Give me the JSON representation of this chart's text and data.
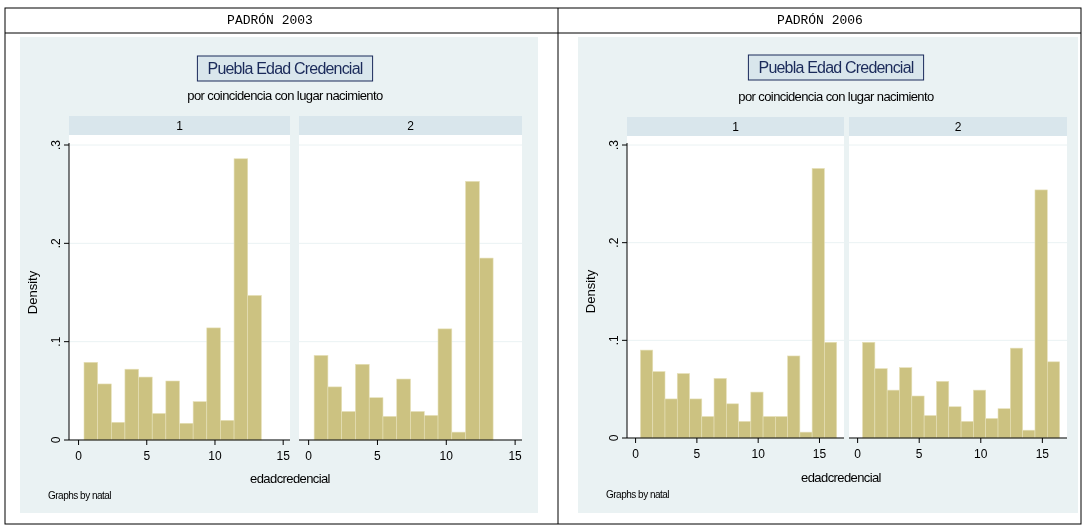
{
  "chart_data": [
    {
      "type": "histogram",
      "title": "Puebla Edad Credencial",
      "subtitle": "por coincidencia con lugar nacimiento",
      "xlabel": "edadcredencial",
      "ylabel": "Density",
      "annotations": [
        "PADRÓN 2003",
        "1",
        "Graphs by natal"
      ],
      "bins": [
        0.4,
        1.4,
        2.4,
        3.4,
        4.4,
        5.4,
        6.4,
        7.4,
        8.4,
        9.4,
        10.4,
        11.4,
        12.4,
        13.4
      ],
      "values": [
        0.079,
        0.057,
        0.018,
        0.072,
        0.064,
        0.027,
        0.06,
        0.017,
        0.039,
        0.114,
        0.02,
        0.286,
        0.147
      ],
      "color": "#ccc281",
      "xlim": [
        -0.7,
        15.5
      ],
      "xticks": [
        0,
        5,
        10,
        15
      ],
      "ylim": [
        0,
        0.3
      ],
      "yticks": [
        0,
        {
          "value": 0.1,
          "label": ".1"
        },
        {
          "value": 0.2,
          "label": ".2"
        },
        {
          "value": 0.3,
          "label": ".3"
        }
      ],
      "grid": "y"
    },
    {
      "type": "histogram",
      "annotations": [
        "2"
      ],
      "bins": [
        0.4,
        1.4,
        2.4,
        3.4,
        4.4,
        5.4,
        6.4,
        7.4,
        8.4,
        9.4,
        10.4,
        11.4,
        12.4,
        13.4
      ],
      "values": [
        0.086,
        0.054,
        0.029,
        0.077,
        0.043,
        0.024,
        0.062,
        0.029,
        0.025,
        0.113,
        0.008,
        0.263,
        0.185
      ],
      "color": "#ccc281",
      "xlim": [
        -0.7,
        15.5
      ],
      "xticks": [
        0,
        5,
        10,
        15
      ],
      "ylim": [
        0,
        0.3
      ],
      "yticks": [
        0,
        0.1,
        0.2,
        0.3
      ],
      "grid": "y",
      "tick_labels": "x"
    },
    {
      "type": "histogram",
      "title": "Puebla Edad Credencial",
      "subtitle": "por coincidencia con lugar nacimiento",
      "xlabel": "edadcredencial",
      "ylabel": "Density",
      "annotations": [
        "PADRÓN 2006",
        "1",
        "Graphs by natal"
      ],
      "bins": [
        0.4,
        1.4,
        2.4,
        3.4,
        4.4,
        5.4,
        6.4,
        7.4,
        8.4,
        9.4,
        10.4,
        11.4,
        12.4,
        13.4,
        14.4,
        15.4,
        16.4
      ],
      "values": [
        0.09,
        0.068,
        0.04,
        0.066,
        0.04,
        0.022,
        0.061,
        0.035,
        0.017,
        0.047,
        0.022,
        0.022,
        0.084,
        0.006,
        0.276,
        0.098
      ],
      "color": "#ccc281",
      "xlim": [
        -0.7,
        17
      ],
      "xticks": [
        0,
        5,
        10,
        15
      ],
      "ylim": [
        0,
        0.3
      ],
      "yticks": [
        0,
        {
          "value": 0.1,
          "label": ".1"
        },
        {
          "value": 0.2,
          "label": ".2"
        },
        {
          "value": 0.3,
          "label": ".3"
        }
      ],
      "grid": "y"
    },
    {
      "type": "histogram",
      "annotations": [
        "2"
      ],
      "bins": [
        0.4,
        1.4,
        2.4,
        3.4,
        4.4,
        5.4,
        6.4,
        7.4,
        8.4,
        9.4,
        10.4,
        11.4,
        12.4,
        13.4,
        14.4,
        15.4,
        16.4
      ],
      "values": [
        0.098,
        0.071,
        0.049,
        0.072,
        0.043,
        0.023,
        0.058,
        0.032,
        0.017,
        0.049,
        0.02,
        0.03,
        0.092,
        0.008,
        0.254,
        0.078
      ],
      "color": "#ccc281",
      "xlim": [
        -0.7,
        17
      ],
      "xticks": [
        0,
        5,
        10,
        15
      ],
      "ylim": [
        0,
        0.3
      ],
      "yticks": [
        0,
        0.1,
        0.2,
        0.3
      ],
      "grid": "y",
      "tick_labels": "x"
    }
  ]
}
